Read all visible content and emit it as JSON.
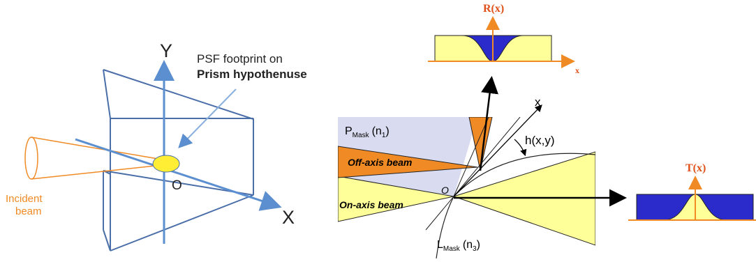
{
  "left_panel": {
    "axis_y": "Y",
    "axis_x": "X",
    "origin": "O",
    "psf_label_line1": "PSF footprint on",
    "psf_label_line2": "Prism hypothenuse",
    "incident_line1": "Incident",
    "incident_line2": "beam"
  },
  "right_panel": {
    "p_mask_main": "P",
    "p_mask_sub": "Mask",
    "p_mask_index": "(n",
    "p_mask_index_sub": "1",
    "p_mask_close": ")",
    "l_mask_main": "L",
    "l_mask_sub": "Mask",
    "l_mask_index": "(n",
    "l_mask_index_sub": "3",
    "l_mask_close": ")",
    "off_axis_beam": "Off-axis beam",
    "on_axis_beam": "On-axis beam",
    "origin": "O",
    "x_axis": "x",
    "hxy": "h(x,y)"
  },
  "reflection_profile": {
    "title": "R(x)",
    "axis": "x"
  },
  "transmission_profile": {
    "title": "T(x)"
  },
  "colors": {
    "prism_blue": "#4a6ea8",
    "axis_blue": "#5b8fcf",
    "orange": "#f08a24",
    "yellow": "#ffff99",
    "dark_blue": "#2b2bcc",
    "lavender": "#d9dcf0"
  }
}
